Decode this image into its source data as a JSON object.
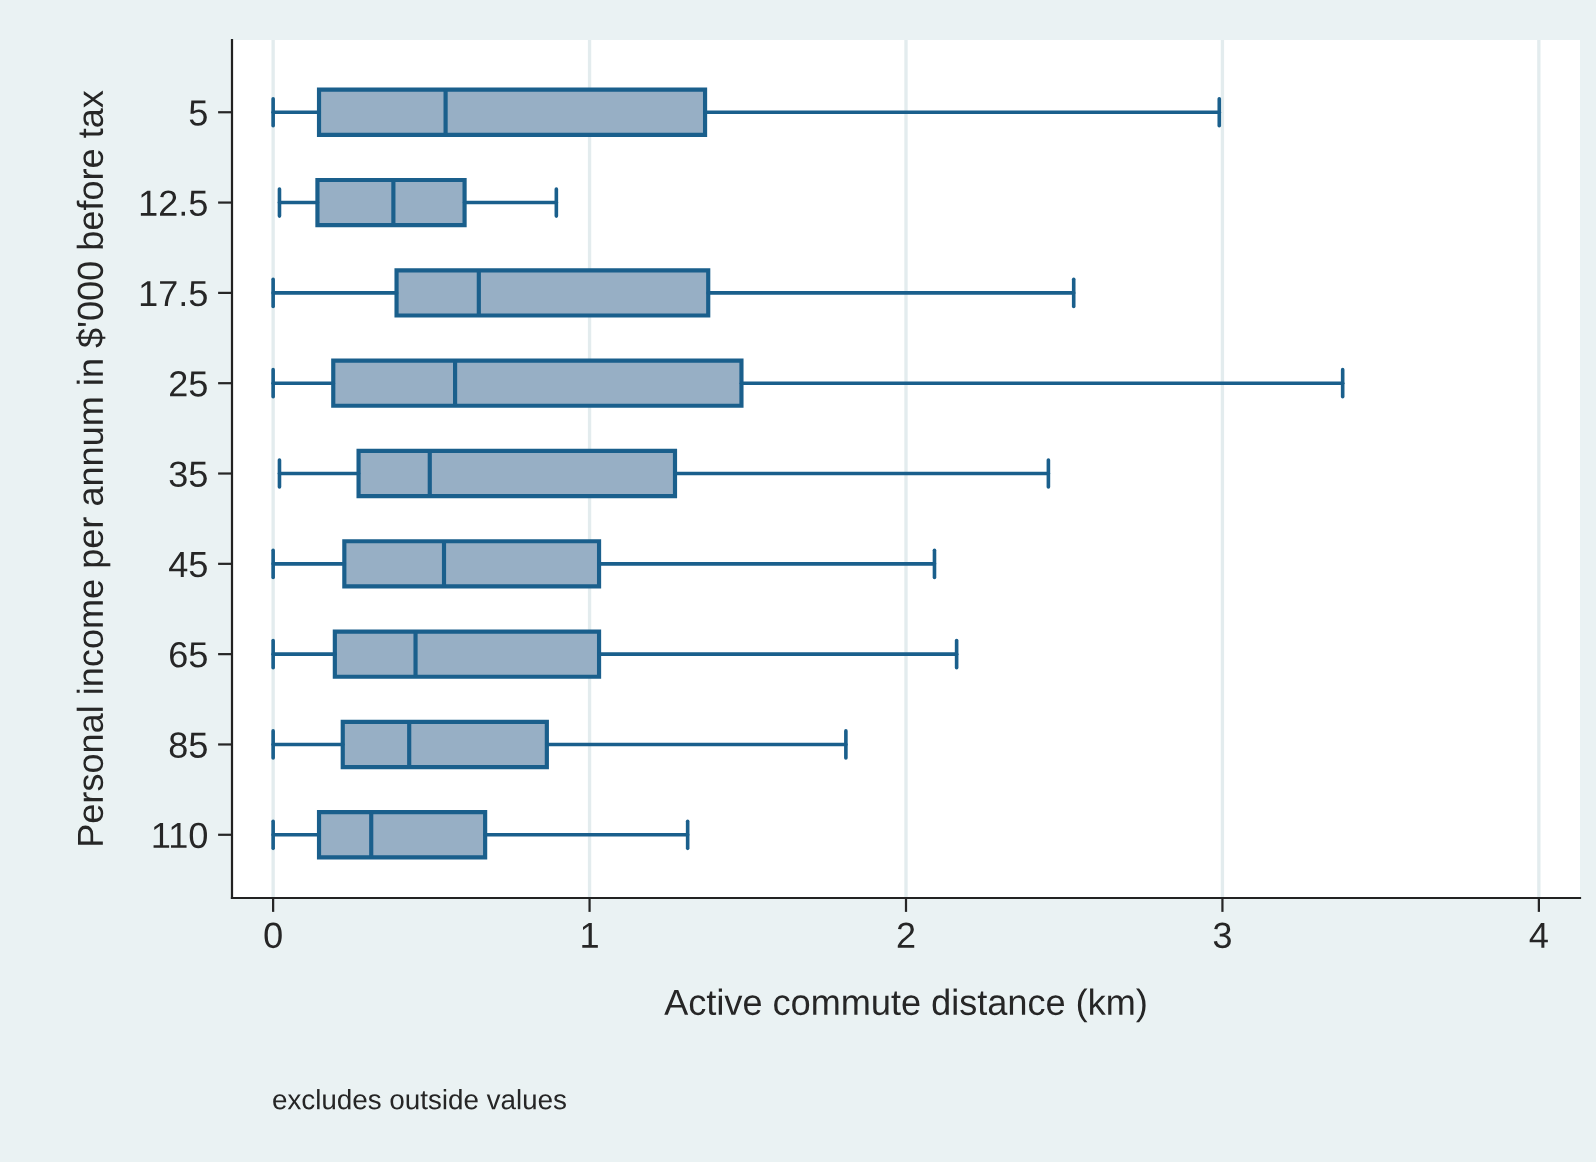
{
  "chart_data": {
    "type": "box",
    "orientation": "horizontal",
    "xlabel": "Active commute distance (km)",
    "ylabel": "Personal income per annum in $'000 before tax",
    "annotations": [
      "excludes outside values"
    ],
    "categories": [
      "5",
      "12.5",
      "17.5",
      "25",
      "35",
      "45",
      "65",
      "85",
      "110"
    ],
    "series": [
      {
        "color": "#97afc5",
        "boxes": [
          {
            "low": 0,
            "q1": 0.145,
            "median": 0.545,
            "q3": 1.365,
            "high": 2.99
          },
          {
            "low": 0.02,
            "q1": 0.14,
            "median": 0.38,
            "q3": 0.605,
            "high": 0.895
          },
          {
            "low": 0,
            "q1": 0.39,
            "median": 0.65,
            "q3": 1.375,
            "high": 2.53
          },
          {
            "low": 0,
            "q1": 0.19,
            "median": 0.575,
            "q3": 1.48,
            "high": 3.38
          },
          {
            "low": 0.02,
            "q1": 0.27,
            "median": 0.495,
            "q3": 1.27,
            "high": 2.45
          },
          {
            "low": 0,
            "q1": 0.225,
            "median": 0.54,
            "q3": 1.03,
            "high": 2.09
          },
          {
            "low": 0,
            "q1": 0.195,
            "median": 0.45,
            "q3": 1.03,
            "high": 2.16
          },
          {
            "low": 0,
            "q1": 0.22,
            "median": 0.43,
            "q3": 0.865,
            "high": 1.81
          },
          {
            "low": 0,
            "q1": 0.145,
            "median": 0.31,
            "q3": 0.67,
            "high": 1.31
          }
        ]
      }
    ],
    "xlim": [
      -0.13,
      4.13
    ],
    "xticks": [
      0,
      1,
      2,
      3,
      4
    ],
    "grid": "x",
    "legend": false
  }
}
